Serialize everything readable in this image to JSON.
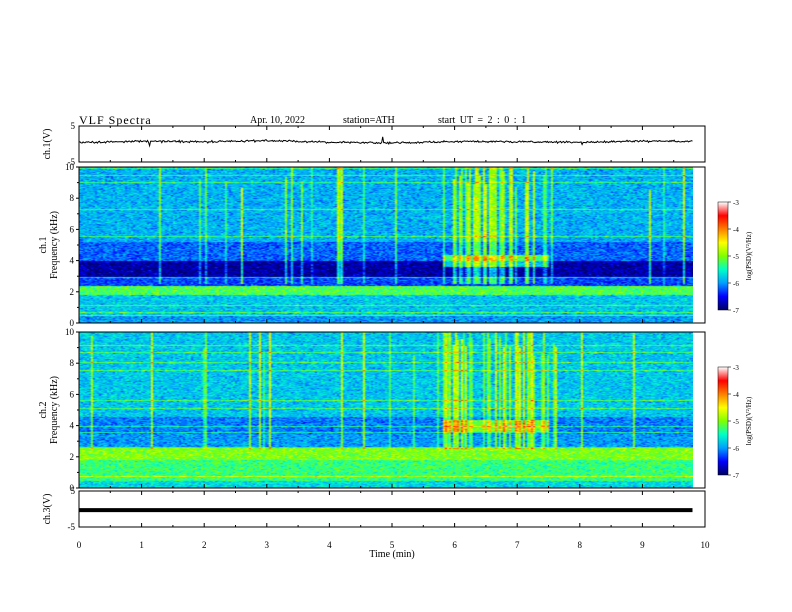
{
  "header": {
    "title": "VLF  Spectra",
    "date": "Apr. 10, 2022",
    "station": "station=ATH",
    "start": "start  UT  =   2  : 0  : 1"
  },
  "chart_data": [
    {
      "type": "line",
      "panel": "ch1-waveform",
      "ylabel": "ch.1(V)",
      "ylim": [
        -5,
        5
      ],
      "yticks": [
        "5",
        "-5"
      ],
      "xlim": [
        0,
        10
      ],
      "x": [
        0.0,
        1.0,
        2.0,
        3.0,
        4.0,
        5.0,
        6.0,
        7.0,
        8.0,
        9.0,
        9.8
      ],
      "values": [
        0.4,
        0.8,
        0.6,
        0.9,
        0.5,
        0.3,
        0.7,
        0.6,
        0.5,
        0.8,
        0.7
      ]
    },
    {
      "type": "heatmap",
      "panel": "ch1-spectrogram",
      "ylabel": "ch.1",
      "ylabel2": "Frequency  (kHz)",
      "ylim": [
        0,
        10
      ],
      "yticks": [
        "10",
        "8",
        "6",
        "4",
        "2",
        "0"
      ],
      "xlim": [
        0,
        10
      ],
      "data_xmax": 9.8,
      "colorbar": {
        "label": "log(PSD)(V²/Hz)",
        "range": [
          -7,
          -3
        ],
        "ticks": [
          "-3",
          "-4",
          "-5",
          "-6",
          "-7"
        ]
      },
      "bands_khz": [
        {
          "from": 0.0,
          "to": 0.5,
          "level": -6.0
        },
        {
          "from": 0.5,
          "to": 1.8,
          "level": -5.8
        },
        {
          "from": 1.8,
          "to": 2.4,
          "level": -5.2
        },
        {
          "from": 2.4,
          "to": 3.0,
          "level": -6.3
        },
        {
          "from": 3.0,
          "to": 4.0,
          "level": -6.8
        },
        {
          "from": 4.0,
          "to": 5.2,
          "level": -6.2
        },
        {
          "from": 5.2,
          "to": 10.0,
          "level": -5.9
        }
      ]
    },
    {
      "type": "heatmap",
      "panel": "ch2-spectrogram",
      "ylabel": "ch.2",
      "ylabel2": "Frequency  (kHz)",
      "ylim": [
        0,
        10
      ],
      "yticks": [
        "10",
        "8",
        "6",
        "4",
        "2",
        "0"
      ],
      "xlim": [
        0,
        10
      ],
      "data_xmax": 9.8,
      "colorbar": {
        "label": "log(PSD)(V²/Hz)",
        "range": [
          -7,
          -3
        ],
        "ticks": [
          "-3",
          "-4",
          "-5",
          "-6",
          "-7"
        ]
      },
      "bands_khz": [
        {
          "from": 0.0,
          "to": 0.5,
          "level": -5.7
        },
        {
          "from": 0.5,
          "to": 1.8,
          "level": -5.3
        },
        {
          "from": 1.8,
          "to": 2.6,
          "level": -5.0
        },
        {
          "from": 2.6,
          "to": 3.5,
          "level": -6.0
        },
        {
          "from": 3.5,
          "to": 4.6,
          "level": -6.1
        },
        {
          "from": 4.6,
          "to": 10.0,
          "level": -5.8
        }
      ]
    },
    {
      "type": "line",
      "panel": "ch3-waveform",
      "ylabel": "ch.3(V)",
      "ylim": [
        -5,
        5
      ],
      "yticks": [
        "5",
        "-5"
      ],
      "xlim": [
        0,
        10
      ],
      "x": [
        0.0,
        9.8
      ],
      "values": [
        -0.3,
        -0.3
      ],
      "xlabel": "Time  (min)",
      "xticks": [
        "0",
        "1",
        "2",
        "3",
        "4",
        "5",
        "6",
        "7",
        "8",
        "9",
        "10"
      ]
    }
  ],
  "colors": {
    "colormap": [
      "#000066",
      "#0000ff",
      "#00a0ff",
      "#00ffc8",
      "#80ff00",
      "#ffff00",
      "#ff8000",
      "#ff0000",
      "#ffffff"
    ],
    "axis": "#000000",
    "background": "#ffffff"
  }
}
